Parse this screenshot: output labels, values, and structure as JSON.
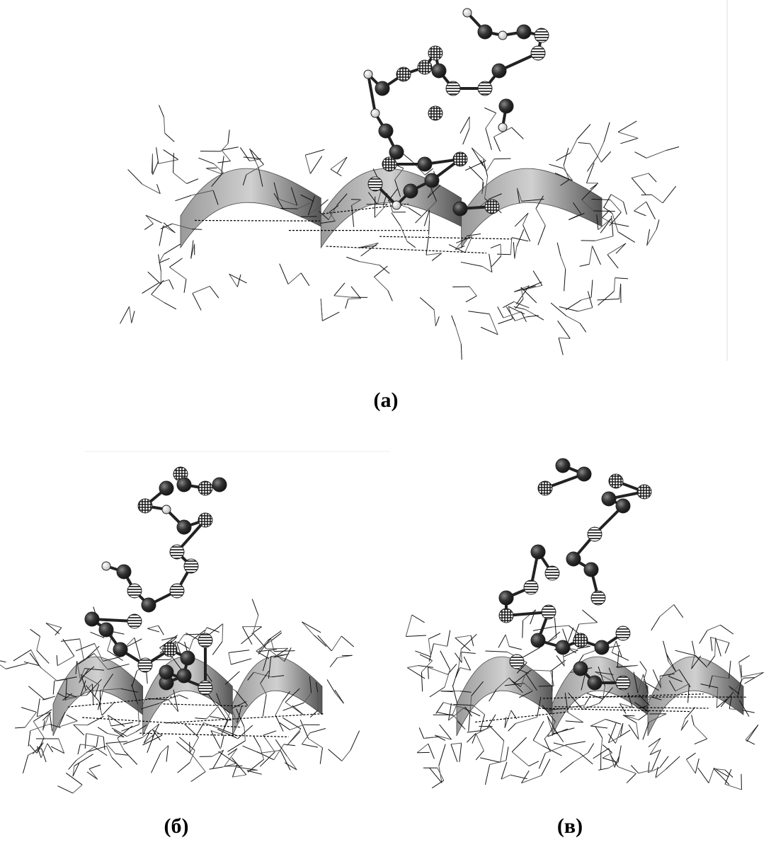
{
  "panels": [
    {
      "label": "(a)"
    },
    {
      "label": "(б)"
    },
    {
      "label": "(в)"
    }
  ]
}
